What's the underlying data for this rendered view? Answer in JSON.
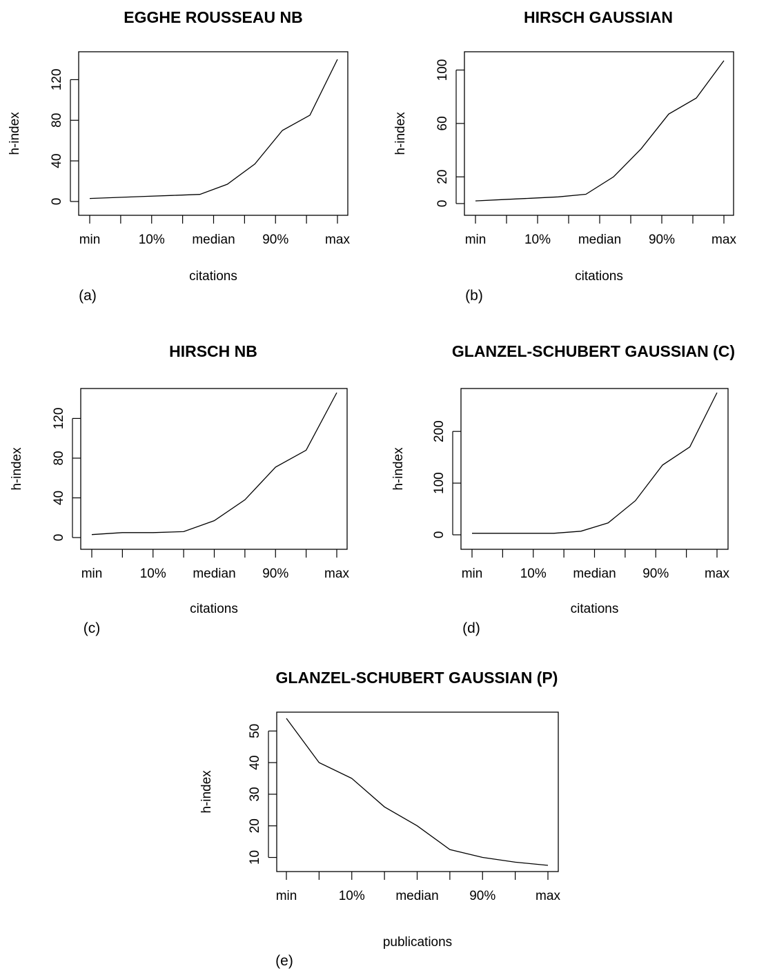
{
  "chart_data": [
    {
      "panel": "(a)",
      "type": "line",
      "title": "EGGHE ROUSSEAU NB",
      "xlabel": "citations",
      "ylabel": "h-index",
      "x_ticks": [
        "min",
        "",
        "10%",
        "",
        "median",
        "",
        "90%",
        "",
        "max"
      ],
      "x_tick_labels": [
        "min",
        "10%",
        "median",
        "90%",
        "max"
      ],
      "y_ticks": [
        "0",
        "40",
        "80",
        "120"
      ],
      "ylim": [
        0,
        140
      ],
      "values": [
        3,
        4,
        5,
        6,
        7,
        17,
        37,
        70,
        85,
        140
      ]
    },
    {
      "panel": "(b)",
      "type": "line",
      "title": "HIRSCH GAUSSIAN",
      "xlabel": "citations",
      "ylabel": "h-index",
      "x_ticks": [
        "min",
        "",
        "10%",
        "",
        "median",
        "",
        "90%",
        "",
        "max"
      ],
      "x_tick_labels": [
        "min",
        "10%",
        "median",
        "90%",
        "max"
      ],
      "y_ticks": [
        "0",
        "20",
        "60",
        "100"
      ],
      "ylim": [
        0,
        108
      ],
      "values": [
        2,
        3,
        4,
        5,
        7,
        20,
        41,
        67,
        79,
        107
      ]
    },
    {
      "panel": "(c)",
      "type": "line",
      "title": "HIRSCH NB",
      "xlabel": "citations",
      "ylabel": "h-index",
      "x_ticks": [
        "min",
        "",
        "10%",
        "",
        "median",
        "",
        "90%",
        "",
        "max"
      ],
      "x_tick_labels": [
        "min",
        "10%",
        "median",
        "90%",
        "max"
      ],
      "y_ticks": [
        "0",
        "40",
        "80",
        "120"
      ],
      "ylim": [
        0,
        146
      ],
      "values": [
        3,
        5,
        5,
        6,
        17,
        38,
        71,
        88,
        146
      ]
    },
    {
      "panel": "(d)",
      "type": "line",
      "title": "GLANZEL-SCHUBERT GAUSSIAN (C)",
      "xlabel": "citations",
      "ylabel": "h-index",
      "x_ticks": [
        "min",
        "",
        "10%",
        "",
        "median",
        "",
        "90%",
        "",
        "max"
      ],
      "x_tick_labels": [
        "min",
        "10%",
        "median",
        "90%",
        "max"
      ],
      "y_ticks": [
        "0",
        "100",
        "200"
      ],
      "ylim": [
        0,
        275
      ],
      "values": [
        3,
        3,
        3,
        3,
        7,
        23,
        66,
        135,
        170,
        275
      ]
    },
    {
      "panel": "(e)",
      "type": "line",
      "title": "GLANZEL-SCHUBERT GAUSSIAN (P)",
      "xlabel": "publications",
      "ylabel": "h-index",
      "x_ticks": [
        "min",
        "",
        "10%",
        "",
        "median",
        "",
        "90%",
        "",
        "max"
      ],
      "x_tick_labels": [
        "min",
        "10%",
        "median",
        "90%",
        "max"
      ],
      "y_ticks": [
        "10",
        "20",
        "30",
        "40",
        "50"
      ],
      "ylim": [
        7.5,
        54
      ],
      "values": [
        54,
        40,
        35,
        26,
        20,
        12.5,
        10,
        8.5,
        7.5
      ]
    }
  ]
}
